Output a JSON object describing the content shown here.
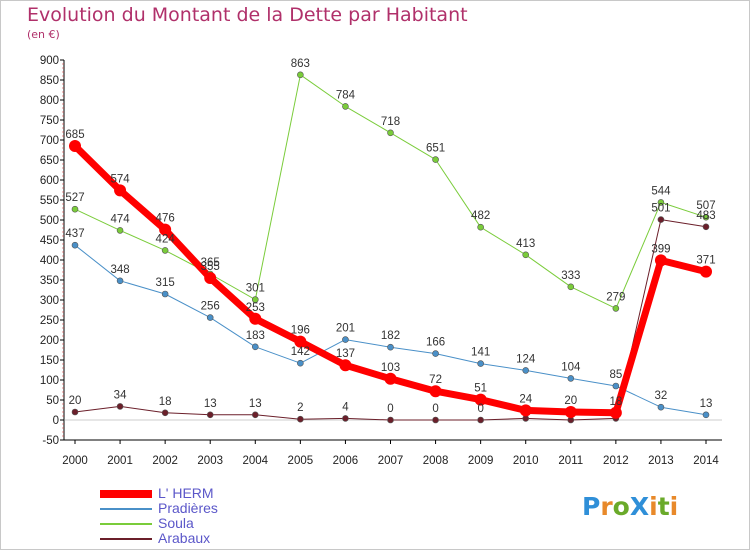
{
  "title": "Evolution du Montant de la Dette par Habitant",
  "subtitle": "(en €)",
  "logo": {
    "text": "Proxiti",
    "letters": [
      {
        "ch": "P",
        "color": "#2f8fd8"
      },
      {
        "ch": "r",
        "color": "#e8892a"
      },
      {
        "ch": "o",
        "color": "#6aaa2a"
      },
      {
        "ch": "X",
        "color": "#2f8fd8"
      },
      {
        "ch": "i",
        "color": "#e8892a"
      },
      {
        "ch": "t",
        "color": "#6aaa2a"
      },
      {
        "ch": "i",
        "color": "#e8892a"
      }
    ]
  },
  "chart_data": {
    "type": "line",
    "title": "Evolution du Montant de la Dette par Habitant",
    "ylabel": "(en €)",
    "xlabel": "",
    "x": [
      "2000",
      "2001",
      "2002",
      "2003",
      "2004",
      "2005",
      "2006",
      "2007",
      "2008",
      "2009",
      "2010",
      "2011",
      "2012",
      "2013",
      "2014"
    ],
    "ylim": [
      -50,
      900
    ],
    "yticks": [
      "-50",
      "0",
      "50",
      "100",
      "150",
      "200",
      "250",
      "300",
      "350",
      "400",
      "450",
      "500",
      "550",
      "600",
      "650",
      "700",
      "750",
      "800",
      "850",
      "900"
    ],
    "grid": false,
    "legend_position": "bottom-left",
    "series": [
      {
        "name": "L' HERM",
        "color": "#ff0000",
        "width": 7,
        "marker": 6,
        "values": [
          685,
          574,
          476,
          355,
          253,
          196,
          137,
          103,
          72,
          51,
          24,
          20,
          18,
          399,
          371
        ],
        "labels": [
          "685",
          "574",
          "476",
          "355",
          "253",
          "196",
          "137",
          "103",
          "72",
          "51",
          "24",
          "20",
          "18",
          "399",
          "371"
        ]
      },
      {
        "name": "Pradières",
        "color": "#4a90c8",
        "width": 1,
        "marker": 3,
        "values": [
          437,
          348,
          315,
          256,
          183,
          142,
          201,
          182,
          166,
          141,
          124,
          104,
          85,
          32,
          13
        ],
        "labels": [
          "437",
          "348",
          "315",
          "256",
          "183",
          "142",
          "201",
          "182",
          "166",
          "141",
          "124",
          "104",
          "85",
          "32",
          "13"
        ]
      },
      {
        "name": "Soula",
        "color": "#7acc3a",
        "width": 1,
        "marker": 3,
        "values": [
          527,
          474,
          424,
          365,
          301,
          863,
          784,
          718,
          651,
          482,
          413,
          333,
          279,
          544,
          507
        ],
        "labels": [
          "527",
          "474",
          "424",
          "365",
          "301",
          "863",
          "784",
          "718",
          "651",
          "482",
          "413",
          "333",
          "279",
          "544",
          "507"
        ]
      },
      {
        "name": "Arabaux",
        "color": "#6b1f2a",
        "width": 1,
        "marker": 3,
        "values": [
          20,
          34,
          18,
          13,
          13,
          2,
          4,
          0,
          0,
          0,
          4,
          0,
          4,
          501,
          483
        ],
        "labels": [
          "20",
          "34",
          "18",
          "13",
          "13",
          "2",
          "4",
          "0",
          "0",
          "0",
          "",
          "",
          "",
          "501",
          "483"
        ]
      }
    ]
  }
}
